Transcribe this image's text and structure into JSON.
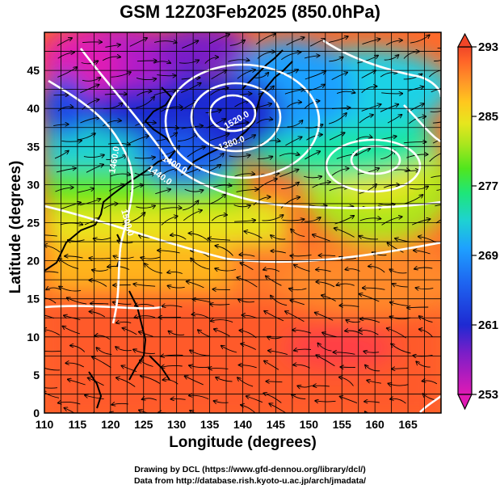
{
  "title": "GSM 12Z03Feb2025 (850.0hPa)",
  "xlabel": "Longitude (degrees)",
  "ylabel": "Latitude  (degrees)",
  "x_ticks": [
    110,
    115,
    120,
    125,
    130,
    135,
    140,
    145,
    150,
    155,
    160,
    165
  ],
  "y_ticks": [
    0,
    5,
    10,
    15,
    20,
    25,
    30,
    35,
    40,
    45
  ],
  "lon_range": [
    110,
    170
  ],
  "lat_range": [
    0,
    50
  ],
  "colorbar": {
    "ticks": [
      253,
      261,
      269,
      277,
      285,
      293
    ],
    "min": 253,
    "max": 293,
    "colors": [
      "#e01ab4",
      "#7a1ec8",
      "#1e2ad2",
      "#1e64f0",
      "#1ea0ff",
      "#1ed2d2",
      "#1ee678",
      "#50e61e",
      "#aae61e",
      "#e6e61e",
      "#ffc81e",
      "#ff9628",
      "#ff6428",
      "#f04628"
    ]
  },
  "contour_labels": [
    "1380.0",
    "1400.0",
    "1440.0",
    "1460.0",
    "1500.0",
    "1520.0"
  ],
  "credit_line1": "Drawing by DCL (https://www.gfd-dennou.org/library/dcl/)",
  "credit_line2": "Data from http://database.rish.kyoto-u.ac.jp/arch/jmadata/"
}
